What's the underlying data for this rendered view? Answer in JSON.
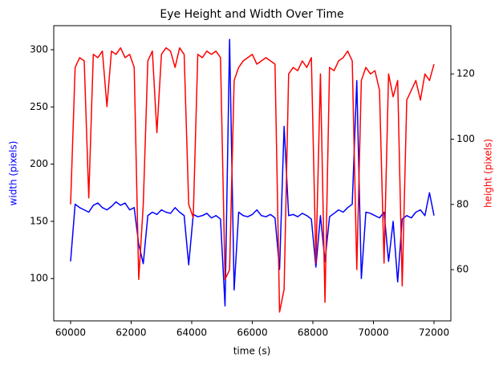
{
  "chart_data": {
    "type": "line",
    "title": "Eye Height and Width Over Time",
    "xlabel": "time (s)",
    "ylabel": "width (pixels)",
    "y2label": "height (pixels)",
    "x": [
      60000,
      60150,
      60300,
      60450,
      60600,
      60750,
      60900,
      61050,
      61200,
      61350,
      61500,
      61650,
      61800,
      61950,
      62100,
      62250,
      62400,
      62550,
      62700,
      62850,
      63000,
      63150,
      63300,
      63450,
      63600,
      63750,
      63900,
      64050,
      64200,
      64350,
      64500,
      64650,
      64800,
      64950,
      65100,
      65250,
      65400,
      65550,
      65700,
      65850,
      66000,
      66150,
      66300,
      66450,
      66600,
      66750,
      66900,
      67050,
      67200,
      67350,
      67500,
      67650,
      67800,
      67950,
      68100,
      68250,
      68400,
      68550,
      68700,
      68850,
      69000,
      69150,
      69300,
      69450,
      69600,
      69750,
      69900,
      70050,
      70200,
      70350,
      70500,
      70650,
      70800,
      70950,
      71100,
      71250,
      71400,
      71550,
      71700,
      71850,
      72000
    ],
    "series": [
      {
        "name": "width",
        "color": "#0000ff",
        "axis": "y",
        "values": [
          115,
          165,
          162,
          160,
          158,
          164,
          166,
          162,
          160,
          163,
          167,
          164,
          166,
          160,
          162,
          130,
          113,
          155,
          158,
          156,
          160,
          158,
          157,
          162,
          158,
          155,
          112,
          156,
          154,
          155,
          157,
          153,
          155,
          152,
          76,
          309,
          90,
          158,
          155,
          154,
          156,
          160,
          155,
          154,
          156,
          153,
          108,
          233,
          155,
          156,
          154,
          157,
          155,
          152,
          110,
          155,
          115,
          154,
          157,
          160,
          158,
          162,
          165,
          273,
          100,
          158,
          157,
          155,
          153,
          158,
          115,
          150,
          97,
          152,
          155,
          153,
          158,
          160,
          155,
          175,
          155
        ]
      },
      {
        "name": "height",
        "color": "#ff0000",
        "axis": "y2",
        "values": [
          80,
          122,
          125,
          124,
          82,
          126,
          125,
          127,
          110,
          127,
          126,
          128,
          125,
          126,
          122,
          57,
          80,
          124,
          127,
          102,
          126,
          128,
          127,
          122,
          128,
          126,
          80,
          76,
          126,
          125,
          127,
          126,
          127,
          125,
          57,
          60,
          118,
          122,
          124,
          125,
          126,
          123,
          124,
          125,
          124,
          123,
          47,
          54,
          120,
          122,
          121,
          124,
          122,
          125,
          62,
          120,
          50,
          122,
          121,
          124,
          125,
          127,
          124,
          60,
          118,
          122,
          120,
          121,
          115,
          62,
          120,
          113,
          118,
          55,
          112,
          115,
          118,
          112,
          120,
          118,
          123
        ]
      }
    ],
    "xlim": [
      59444,
      72556
    ],
    "xticks": [
      60000,
      62000,
      64000,
      66000,
      68000,
      70000,
      72000
    ],
    "ylim": [
      63,
      321
    ],
    "yticks": [
      100,
      150,
      200,
      250,
      300
    ],
    "y2lim": [
      44.3,
      134.8
    ],
    "y2ticks": [
      60,
      80,
      100,
      120
    ],
    "grid": false
  }
}
